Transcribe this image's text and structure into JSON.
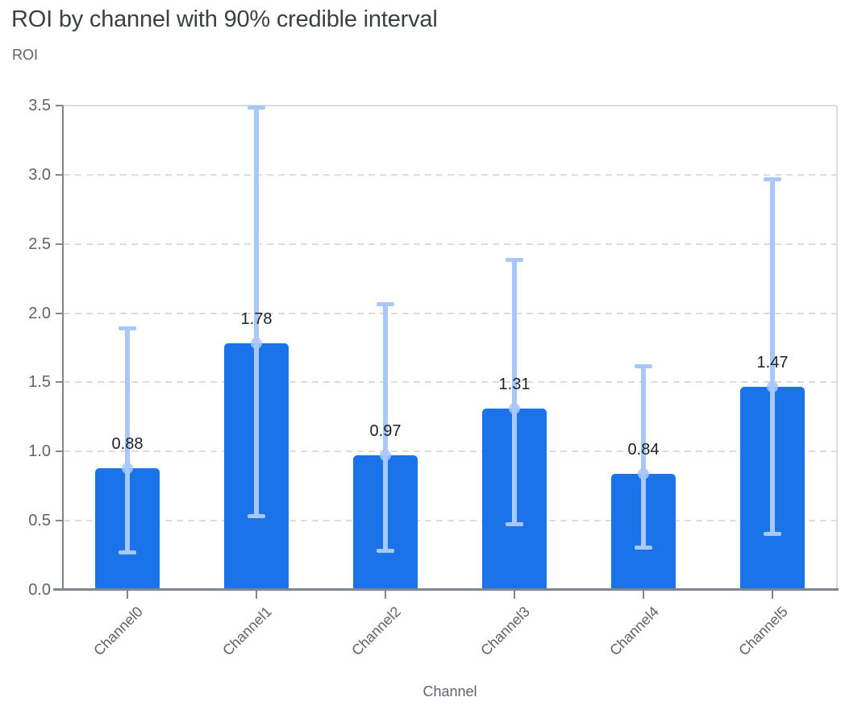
{
  "header": {
    "title": "ROI by channel with 90% credible interval",
    "subtitle": "ROI"
  },
  "chart_data": {
    "type": "bar",
    "title": "ROI by channel with 90% credible interval",
    "categories": [
      "Channel0",
      "Channel1",
      "Channel2",
      "Channel3",
      "Channel4",
      "Channel5"
    ],
    "values": [
      0.88,
      1.78,
      0.97,
      1.31,
      0.84,
      1.47
    ],
    "value_labels": [
      "0.88",
      "1.78",
      "0.97",
      "1.31",
      "0.84",
      "1.47"
    ],
    "error_low": [
      0.27,
      0.53,
      0.28,
      0.47,
      0.3,
      0.4
    ],
    "error_high": [
      1.89,
      3.49,
      2.07,
      2.39,
      1.62,
      2.97
    ],
    "error_description": "90% credible interval",
    "xlabel": "Channel",
    "ylabel": "ROI",
    "ylim": [
      0,
      3.5
    ],
    "yticks": [
      0,
      0.5,
      1,
      1.5,
      2,
      2.5,
      3,
      3.5
    ],
    "ytick_labels": [
      "0.0",
      "0.5",
      "1.0",
      "1.5",
      "2.0",
      "2.5",
      "3.0",
      "3.5"
    ],
    "grid": "horizontal-dashed",
    "legend": "none",
    "colors": {
      "bar": "#1a73e8",
      "error_bar": "#a8c7fa",
      "marker": "#a8c7fa",
      "title_text": "#3c4043",
      "axis_text": "#5f6368",
      "value_label_text": "#202124",
      "axis_line": "#80868b",
      "gridline": "#dadce0"
    }
  }
}
